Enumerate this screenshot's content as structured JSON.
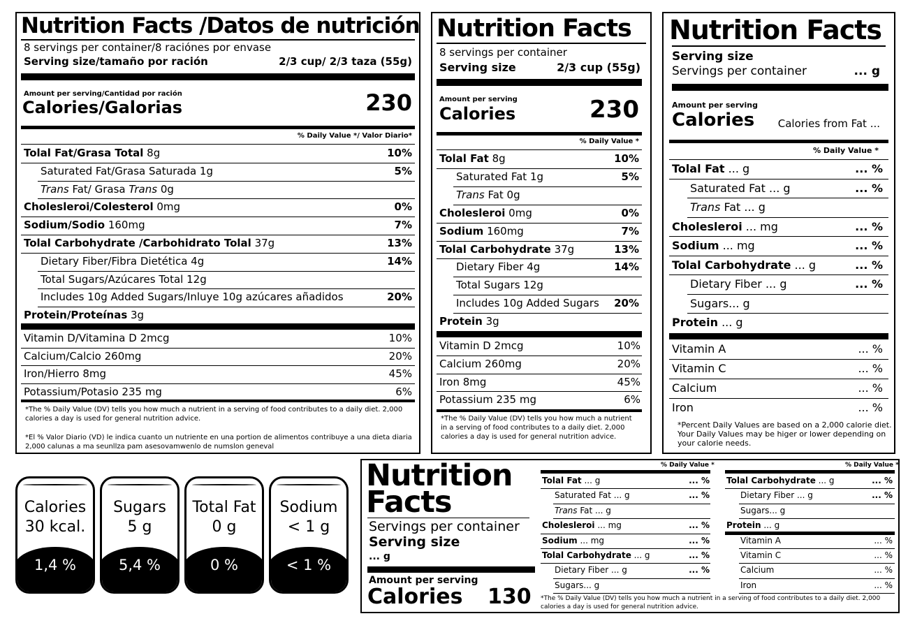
{
  "p1": {
    "title": "Nutrition Facts /Datos de nutrición",
    "servings": "8 servings per container/8 raciónes por envase",
    "serving_label": "Serving size/tamaño por ración",
    "serving_value": "2/3 cup/ 2/3 taza (55g)",
    "amount_label": "Amount per serving/Cantidad por ración",
    "calories_label": "Calories/Galorias",
    "calories_value": "230",
    "dv_header": "% Daily Value */ Valor Diario*",
    "rows": [
      {
        "b": "Tolal Fat/Grasa Total",
        "r": " 8g",
        "dv": "10%"
      },
      {
        "r": "Saturated Fat/Grasa Saturada  1g",
        "dv": "5%"
      },
      {
        "i": "Trans",
        "r": " Fat/ Grasa ",
        "i2": "Trans",
        "r2": "  0g",
        "dv": ""
      },
      {
        "b": "Cholesleroi/Colesterol",
        "r": " 0mg",
        "dv": "0%"
      },
      {
        "b": "Sodium/Sodio",
        "r": " 160mg",
        "dv": "7%"
      },
      {
        "b": "Tolal Carbohydrate /Carbohidrato Tolal",
        "r": " 37g",
        "dv": "13%"
      },
      {
        "r": "Dietary Fiber/Fibra Dietética 4g",
        "dv": "14%"
      },
      {
        "r": "Total Sugars/Azúcares Total 12g",
        "dv": ""
      },
      {
        "r": "Includes 10g Added Sugars/Inluye 10g azúcares añadidos",
        "dv": "20%"
      },
      {
        "b": "Protein/Proteínas",
        "r": "  3g",
        "dv": ""
      }
    ],
    "vitamins": [
      {
        "l": "Vitamin D/Vitamina D  2mcg",
        "v": "10%"
      },
      {
        "l": "Calcium/Calcio  260mg",
        "v": "20%"
      },
      {
        "l": "Iron/Hierro 8mg",
        "v": "45%"
      },
      {
        "l": "Potassium/Potasio  235 mg",
        "v": "6%"
      }
    ],
    "foot1": "*The % Daily Value (DV) tells you how much a nutrient in a serving of food contributes to a daily diet. 2,000 calories a day is used for general nutrition advice.",
    "foot2": "*El % Valor Diario (VD) le indica cuanto un  nutriente en una portion de alimentos contribuye a una dieta diaria 2,000 calunas a ma seunllza pam asesovamwenlo de numslon geneval"
  },
  "p2": {
    "title": "Nutrition Facts",
    "servings": "8 servings per container",
    "serving_label": "Serving size",
    "serving_value": "2/3 cup (55g)",
    "amount_label": "Amount per serving",
    "calories_label": "Calories",
    "calories_value": "230",
    "dv_header": "% Daily Value *",
    "rows": [
      {
        "b": "Tolal Fat",
        "r": "  8g",
        "dv": "10%"
      },
      {
        "r": "Saturated Fat  1g",
        "dv": "5%"
      },
      {
        "i": "Trans",
        "r": " Fat  0g",
        "dv": ""
      },
      {
        "b": "Cholesleroi",
        "r": " 0mg",
        "dv": "0%"
      },
      {
        "b": "Sodium",
        "r": " 160mg",
        "dv": "7%"
      },
      {
        "b": "Tolal Carbohydrate",
        "r": " 37g",
        "dv": "13%"
      },
      {
        "r": "Dietary Fiber 4g",
        "dv": "14%"
      },
      {
        "r": "Total Sugars 12g",
        "dv": ""
      },
      {
        "r": "Includes 10g Added Sugars",
        "dv": "20%"
      },
      {
        "b": "Protein",
        "r": "  3g",
        "dv": ""
      }
    ],
    "vitamins": [
      {
        "l": "Vitamin D  2mcg",
        "v": "10%"
      },
      {
        "l": "Calcium  260mg",
        "v": "20%"
      },
      {
        "l": "Iron 8mg",
        "v": "45%"
      },
      {
        "l": "Potassium  235 mg",
        "v": "6%"
      }
    ],
    "foot1": "*The % Daily Value (DV) tells you how much a nutrient in a serving of food contributes to a daily diet. 2,000 calories a day is used for general nutrition advice."
  },
  "p3": {
    "title": "Nutrition Facts",
    "serving_label": "Serving size",
    "servings": "Servings per container",
    "servings_value": "...  g",
    "amount_label": "Amount per serving",
    "calories_label": "Calories",
    "calories_from_fat": "Calories from Fat  ...",
    "dv_header": "% Daily Value *",
    "rows": [
      {
        "b": "Tolal Fat",
        "r": "  ...  g",
        "dv": "...  %"
      },
      {
        "r": "Saturated Fat  ...  g",
        "dv": "...  %"
      },
      {
        "i": "Trans",
        "r": " Fat  ... g",
        "dv": ""
      },
      {
        "b": "Cholesleroi",
        "r": " ... mg",
        "dv": "...  %"
      },
      {
        "b": "Sodium",
        "r": "  ...  mg",
        "dv": "...  %"
      },
      {
        "b": "Tolal Carbohydrate",
        "r": " ...  g",
        "dv": "...  %"
      },
      {
        "r": "Dietary Fiber ...  g",
        "dv": "...  %"
      },
      {
        "r": "Sugars...  g",
        "dv": ""
      },
      {
        "b": "Protein",
        "r": "  ...  g",
        "dv": ""
      }
    ],
    "vitamins": [
      {
        "l": "Vitamin A",
        "v": "...  %"
      },
      {
        "l": "Vitamin C",
        "v": "...  %"
      },
      {
        "l": "Calcium",
        "v": "...  %"
      },
      {
        "l": "Iron",
        "v": "...  %"
      }
    ],
    "foot1": "*Percent Daily Values are based on a 2,000 calorie diet. Your Daily Values may be higer or lower depending on your calorie needs."
  },
  "badges": [
    {
      "l1": "Calories",
      "l2": "30 kcal.",
      "pct": "1,4 %"
    },
    {
      "l1": "Sugars",
      "l2": "5 g",
      "pct": "5,4 %"
    },
    {
      "l1": "Total Fat",
      "l2": "0 g",
      "pct": "0 %"
    },
    {
      "l1": "Sodium",
      "l2": "< 1 g",
      "pct": "< 1 %"
    }
  ],
  "p4": {
    "title1": "Nutrition",
    "title2": "Facts",
    "servings": "Servings per container",
    "serving_label": "Serving size",
    "serving_value": "...  g",
    "amount_label": "Amount per serving",
    "calories_label": "Calories",
    "calories_value": "130",
    "dv_header": "% Daily Value *",
    "col1": [
      {
        "b": "Tolal Fat",
        "r": "  ...  g",
        "dv": "...  %"
      },
      {
        "r": "Saturated Fat  ...  g",
        "dv": "...  %"
      },
      {
        "i": "Trans",
        "r": " Fat  ... g",
        "dv": ""
      },
      {
        "b": "Cholesleroi",
        "r": " ... mg",
        "dv": "...  %"
      },
      {
        "b": "Sodium",
        "r": "  ...  mg",
        "dv": "...  %"
      },
      {
        "b": "Tolal Carbohydrate",
        "r": " ...  g",
        "dv": "...  %"
      },
      {
        "r": "Dietary Fiber ...  g",
        "dv": "...  %"
      },
      {
        "r": "Sugars...  g",
        "dv": ""
      }
    ],
    "col2": [
      {
        "b": "Tolal Carbohydrate",
        "r": " ...  g",
        "dv": "...  %"
      },
      {
        "r": "Dietary Fiber ...  g",
        "dv": "...  %"
      },
      {
        "r": "Sugars...  g",
        "dv": ""
      },
      {
        "b": "Protein",
        "r": "  ...  g",
        "dv": ""
      },
      {
        "r": "Vitamin A",
        "dv": "...  %"
      },
      {
        "r": "Vitamin C",
        "dv": "...  %"
      },
      {
        "r": "Calcium",
        "dv": "...  %"
      },
      {
        "r": "Iron",
        "dv": "...  %"
      }
    ],
    "foot1": "*The % Daily Value (DV) tells you how much a nutrient in a serving of food contributes to a daily diet. 2,000 calories a day is used for general nutrition advice."
  }
}
